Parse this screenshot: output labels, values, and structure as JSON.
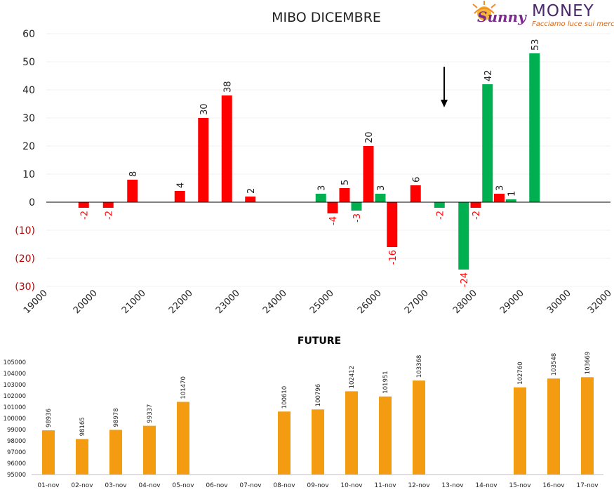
{
  "logo": {
    "brand_script": "Sunny",
    "brand_word": "MONEY",
    "tagline": "Facciamo luce sui mercati"
  },
  "chart_data": [
    {
      "type": "bar",
      "title": "MIBO DICEMBRE",
      "x_tick_labels": [
        "19000",
        "20000",
        "21000",
        "22000",
        "23000",
        "24000",
        "25000",
        "26000",
        "27000",
        "28000",
        "29000",
        "30000",
        "32000"
      ],
      "y_tick_labels": [
        "60",
        "50",
        "40",
        "30",
        "20",
        "10",
        "0",
        "(10)",
        "(20)",
        "(30)"
      ],
      "ylim": [
        -30,
        60
      ],
      "grid": true,
      "legend": "none",
      "annotation": "arrow pointing down",
      "colors": {
        "red": "#ff0000",
        "green": "#00b050",
        "axis": "#000000",
        "arrow": "#000000"
      },
      "bars": [
        {
          "x": 19750,
          "value": -2,
          "label": "-2",
          "color": "red"
        },
        {
          "x": 20250,
          "value": -2,
          "label": "-2",
          "color": "red"
        },
        {
          "x": 20750,
          "value": 8,
          "label": "8",
          "color": "red"
        },
        {
          "x": 21750,
          "value": 4,
          "label": "4",
          "color": "red"
        },
        {
          "x": 22250,
          "value": 30,
          "label": "30",
          "color": "red"
        },
        {
          "x": 22750,
          "value": 38,
          "label": "38",
          "color": "red"
        },
        {
          "x": 23250,
          "value": 2,
          "label": "2",
          "color": "red"
        },
        {
          "x": 24750,
          "value": 3,
          "label": "3",
          "color": "green"
        },
        {
          "x": 25000,
          "value": -4,
          "label": "-4",
          "color": "red"
        },
        {
          "x": 25250,
          "value": 5,
          "label": "5",
          "color": "red"
        },
        {
          "x": 25500,
          "value": -3,
          "label": "-3",
          "color": "green"
        },
        {
          "x": 25750,
          "value": 20,
          "label": "20",
          "color": "red"
        },
        {
          "x": 26000,
          "value": 3,
          "label": "3",
          "color": "green"
        },
        {
          "x": 26250,
          "value": -16,
          "label": "-16",
          "color": "red"
        },
        {
          "x": 26750,
          "value": 6,
          "label": "6",
          "color": "red"
        },
        {
          "x": 27250,
          "value": -2,
          "label": "-2",
          "color": "green"
        },
        {
          "x": 27750,
          "value": -24,
          "label": "-24",
          "color": "green"
        },
        {
          "x": 28000,
          "value": -2,
          "label": "-2",
          "color": "red"
        },
        {
          "x": 28250,
          "value": 42,
          "label": "42",
          "color": "green"
        },
        {
          "x": 28500,
          "value": 3,
          "label": "3",
          "color": "red"
        },
        {
          "x": 28750,
          "value": 1,
          "label": "1",
          "color": "green"
        },
        {
          "x": 29250,
          "value": 53,
          "label": "53",
          "color": "green"
        }
      ]
    },
    {
      "type": "bar",
      "title": "FUTURE",
      "ylim": [
        95000,
        105000
      ],
      "y_tick_labels": [
        "105000",
        "104000",
        "103000",
        "102000",
        "101000",
        "100000",
        "99000",
        "98000",
        "97000",
        "96000",
        "95000"
      ],
      "categories": [
        "01-nov",
        "02-nov",
        "03-nov",
        "04-nov",
        "05-nov",
        "06-nov",
        "07-nov",
        "08-nov",
        "09-nov",
        "10-nov",
        "11-nov",
        "12-nov",
        "13-nov",
        "14-nov",
        "15-nov",
        "16-nov",
        "17-nov"
      ],
      "values": [
        98936,
        98165,
        98978,
        99337,
        101470,
        null,
        null,
        100610,
        100796,
        102412,
        101951,
        103368,
        null,
        null,
        102760,
        103548,
        103669
      ],
      "labels": [
        "98936",
        "98165",
        "98978",
        "99337",
        "101470",
        "",
        "",
        "100610",
        "100796",
        "102412",
        "101951",
        "103368",
        "",
        "",
        "102760",
        "103548",
        "103669"
      ],
      "grid": false,
      "legend": "none",
      "colors": {
        "bar": "#f39c12",
        "axis": "#bfbfbf"
      }
    }
  ]
}
